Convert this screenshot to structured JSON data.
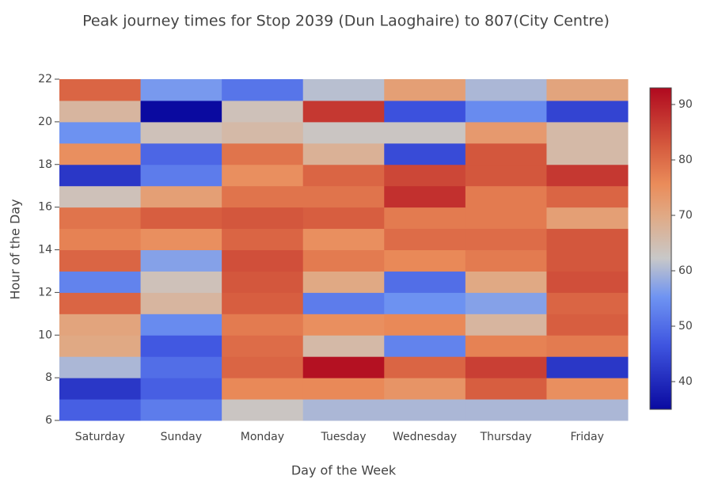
{
  "chart_data": {
    "type": "heatmap",
    "title": "Peak journey times for Stop 2039  (Dun Laoghaire) to 807(City Centre)",
    "x_label": "Day of the Week",
    "y_label": "Hour of the Day",
    "categories": [
      "Saturday",
      "Sunday",
      "Monday",
      "Tuesday",
      "Wednesday",
      "Thursday",
      "Friday"
    ],
    "ybins": [
      6,
      7,
      8,
      9,
      10,
      11,
      12,
      13,
      14,
      15,
      16,
      17,
      18,
      19,
      20,
      21,
      22
    ],
    "ylim": [
      6,
      22
    ],
    "yticks": [
      6,
      8,
      10,
      12,
      14,
      16,
      18,
      20,
      22
    ],
    "z": [
      [
        48,
        52,
        63,
        60,
        60,
        60,
        60
      ],
      [
        42,
        48,
        76,
        76,
        74,
        82,
        75
      ],
      [
        60,
        50,
        81,
        92,
        81,
        86,
        42
      ],
      [
        70,
        47,
        80,
        66,
        53,
        77,
        78
      ],
      [
        71,
        54,
        78,
        75,
        76,
        67,
        82
      ],
      [
        81,
        67,
        82,
        52,
        55,
        57,
        81
      ],
      [
        53,
        64,
        83,
        70,
        50,
        70,
        84
      ],
      [
        81,
        57,
        84,
        78,
        76,
        78,
        83
      ],
      [
        77,
        75,
        81,
        75,
        80,
        80,
        83
      ],
      [
        79,
        82,
        83,
        82,
        78,
        78,
        72
      ],
      [
        64,
        72,
        79,
        79,
        88,
        78,
        81
      ],
      [
        42,
        52,
        75,
        81,
        85,
        83,
        87
      ],
      [
        75,
        49,
        79,
        68,
        45,
        83,
        66
      ],
      [
        55,
        64,
        66,
        63,
        63,
        73,
        66
      ],
      [
        67,
        35,
        64,
        87,
        46,
        54,
        44
      ],
      [
        81,
        56,
        51,
        61,
        72,
        60,
        71
      ]
    ],
    "zlim": [
      35,
      93
    ],
    "zticks": [
      40,
      50,
      60,
      70,
      80,
      90
    ],
    "colorscale": [
      [
        0,
        "#0a0aa0"
      ],
      [
        0.2,
        "#3f55e0"
      ],
      [
        0.35,
        "#6f94f2"
      ],
      [
        0.47,
        "#c8c8c8"
      ],
      [
        0.6,
        "#e0aa86"
      ],
      [
        0.7,
        "#ea8c5a"
      ],
      [
        0.82,
        "#d55a3e"
      ],
      [
        1,
        "#b0091f"
      ]
    ]
  }
}
